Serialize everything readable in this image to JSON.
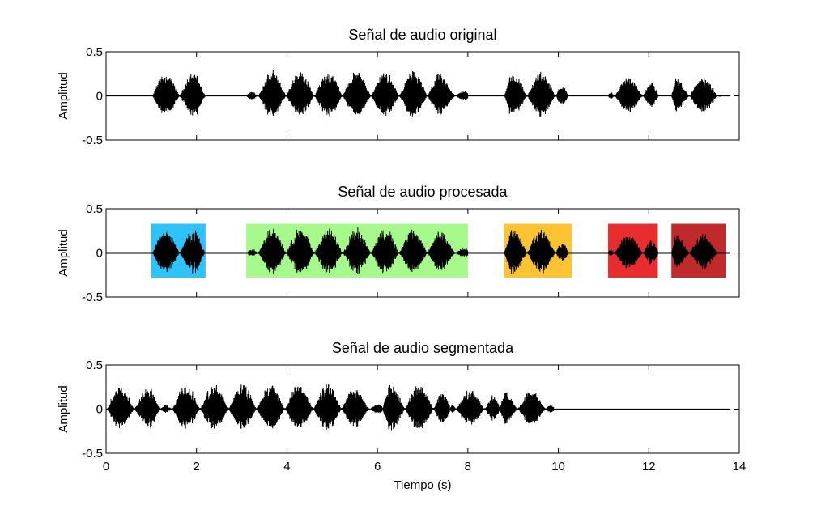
{
  "figure": {
    "xlabel": "Tiempo (s)"
  },
  "chart_data": [
    {
      "type": "line",
      "title": "Señal de audio original",
      "xlabel": "",
      "ylabel": "Amplitud",
      "xlim": [
        0,
        14
      ],
      "ylim": [
        -0.5,
        0.5
      ],
      "yticks": [
        "0.5",
        "0",
        "-0.5"
      ],
      "signal_end": 13.8,
      "segments": [
        {
          "start": 1.0,
          "end": 2.2,
          "peak": 0.28
        },
        {
          "start": 3.1,
          "end": 8.0,
          "peak": 0.3
        },
        {
          "start": 8.8,
          "end": 10.2,
          "peak": 0.29
        },
        {
          "start": 11.1,
          "end": 12.2,
          "peak": 0.23
        },
        {
          "start": 12.5,
          "end": 13.6,
          "peak": 0.23
        }
      ]
    },
    {
      "type": "line",
      "title": "Señal de audio procesada",
      "xlabel": "",
      "ylabel": "Amplitud",
      "xlim": [
        0,
        14
      ],
      "ylim": [
        -0.5,
        0.5
      ],
      "yticks": [
        "0.5",
        "0",
        "-0.5"
      ],
      "signal_end": 13.8,
      "highlight_ylim": [
        -0.28,
        0.33
      ],
      "highlights": [
        {
          "start": 1.0,
          "end": 2.2,
          "color": "#2ec3fb"
        },
        {
          "start": 3.1,
          "end": 8.0,
          "color": "#a6f98b"
        },
        {
          "start": 8.8,
          "end": 10.3,
          "color": "#fcc433"
        },
        {
          "start": 11.1,
          "end": 12.2,
          "color": "#e92d2f"
        },
        {
          "start": 12.5,
          "end": 13.7,
          "color": "#c02a2c"
        }
      ],
      "segments": [
        {
          "start": 1.0,
          "end": 2.2,
          "peak": 0.28
        },
        {
          "start": 3.1,
          "end": 8.0,
          "peak": 0.3
        },
        {
          "start": 8.8,
          "end": 10.2,
          "peak": 0.29
        },
        {
          "start": 11.1,
          "end": 12.2,
          "peak": 0.23
        },
        {
          "start": 12.5,
          "end": 13.6,
          "peak": 0.23
        }
      ]
    },
    {
      "type": "line",
      "title": "Señal de audio segmentada",
      "xlabel": "Tiempo (s)",
      "ylabel": "Amplitud",
      "xlim": [
        0,
        14
      ],
      "ylim": [
        -0.5,
        0.5
      ],
      "yticks": [
        "0.5",
        "0",
        "-0.5"
      ],
      "xticks": [
        "0",
        "2",
        "4",
        "6",
        "8",
        "10",
        "12",
        "14"
      ],
      "signal_end": 13.8,
      "segments": [
        {
          "start": 0.0,
          "end": 1.2,
          "peak": 0.28
        },
        {
          "start": 1.2,
          "end": 6.1,
          "peak": 0.3
        },
        {
          "start": 6.1,
          "end": 7.6,
          "peak": 0.31
        },
        {
          "start": 7.6,
          "end": 8.7,
          "peak": 0.23
        },
        {
          "start": 8.7,
          "end": 9.9,
          "peak": 0.23
        }
      ]
    }
  ]
}
